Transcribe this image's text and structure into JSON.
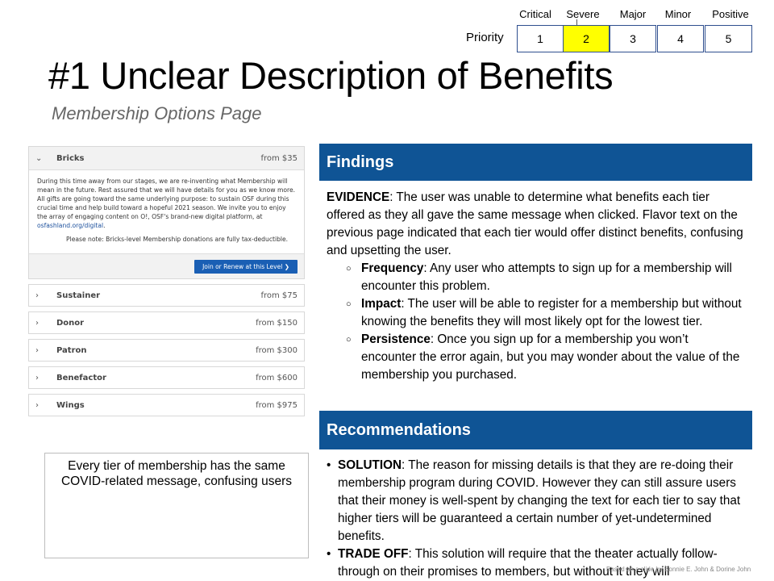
{
  "priority": {
    "label": "Priority",
    "levels": [
      {
        "name": "Critical",
        "number": "1"
      },
      {
        "name": "Severe",
        "number": "2"
      },
      {
        "name": "Major",
        "number": "3"
      },
      {
        "name": "Minor",
        "number": "4"
      },
      {
        "name": "Positive",
        "number": "5"
      }
    ],
    "selected": "2",
    "highlight_color": "#ffff00"
  },
  "title": "#1 Unclear Description of Benefits",
  "subtitle": "Membership Options Page",
  "screenshot": {
    "open_tier": {
      "name": "Bricks",
      "price": "from $35",
      "body": "During this time away from our stages, we are re-inventing what Membership will mean in the future. Rest assured that we will have details for you as we know more. All gifts are going toward the same underlying purpose: to sustain OSF during this crucial time and help build toward a hopeful 2021 season. We invite you to enjoy the array of engaging content on O!, OSF's brand-new digital platform, at ",
      "link": "osfashland.org/digital",
      "body_end": ".",
      "note": "Please note: Bricks-level Membership donations are fully tax-deductible.",
      "button": "Join or Renew at this Level"
    },
    "tiers": [
      {
        "name": "Sustainer",
        "price": "from $75"
      },
      {
        "name": "Donor",
        "price": "from $150"
      },
      {
        "name": "Patron",
        "price": "from $300"
      },
      {
        "name": "Benefactor",
        "price": "from $600"
      },
      {
        "name": "Wings",
        "price": "from $975"
      }
    ]
  },
  "caption": "Every tier of membership has the same COVID-related message, confusing users",
  "findings": {
    "heading": "Findings",
    "evidence_label": "EVIDENCE",
    "evidence_text": ": The user was unable to determine what benefits each tier offered as they all gave the same message when clicked. Flavor text on the previous page indicated that each tier would offer distinct benefits, confusing and upsetting the user.",
    "items": [
      {
        "label": "Frequency",
        "text": ": Any user who attempts to sign up for a membership will encounter this problem."
      },
      {
        "label": "Impact",
        "text": ": The user will be able to register for a membership but without knowing the benefits they will most likely opt for the lowest tier."
      },
      {
        "label": "Persistence",
        "text": ": Once you sign up for a membership you won’t encounter the error again, but you may wonder about the value of the membership you purchased."
      }
    ]
  },
  "recommendations": {
    "heading": "Recommendations",
    "items": [
      {
        "label": "SOLUTION",
        "text": ": The reason for missing details is that they are re-doing their membership program during COVID. However they can still assure users that their money is well-spent by changing the text for each tier to say that higher tiers will be guaranteed a certain number of yet-undetermined benefits."
      },
      {
        "label": "TRADE OFF",
        "text": ": This solution will require that the theater actually follow-through on their promises to members, but without it they will"
      }
    ]
  },
  "footer_note": "Based on a slide by Bonnie E. John & Dorine John",
  "colors": {
    "bar": "#0f5495",
    "button": "#1a5fb4"
  }
}
